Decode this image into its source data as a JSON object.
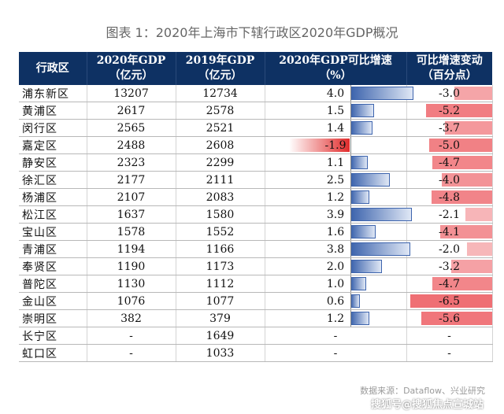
{
  "title": "图表 1：2020年上海市下辖行政区2020年GDP概况",
  "headers": {
    "name": "行政区",
    "gdp2020": "2020年GDP\n（亿元）",
    "gdp2019": "2019年GDP\n（亿元）",
    "growth": "2020年GDP可比增速\n（%）",
    "change": "可比增速变动\n（百分点）"
  },
  "source": "数据来源：Dataflow、兴业研究",
  "watermark": "搜狐号@搜狐焦点宣城站",
  "colors": {
    "header_bg": "#0e3163",
    "positive_bar": "#3d64ad",
    "negative_bar": "#e12b2b",
    "change_bar": "#ef6f74"
  },
  "chart_data": {
    "type": "table",
    "columns": [
      "行政区",
      "2020年GDP（亿元）",
      "2019年GDP（亿元）",
      "2020年GDP可比增速（%）",
      "可比增速变动（百分点）"
    ],
    "rows": [
      {
        "name": "浦东新区",
        "gdp2020": "13207",
        "gdp2019": "12734",
        "growth": "4.0",
        "change": "-3.0"
      },
      {
        "name": "黄浦区",
        "gdp2020": "2617",
        "gdp2019": "2578",
        "growth": "1.5",
        "change": "-5.2"
      },
      {
        "name": "闵行区",
        "gdp2020": "2565",
        "gdp2019": "2521",
        "growth": "1.4",
        "change": "-3.7"
      },
      {
        "name": "嘉定区",
        "gdp2020": "2488",
        "gdp2019": "2608",
        "growth": "-1.9",
        "change": "-5.0"
      },
      {
        "name": "静安区",
        "gdp2020": "2323",
        "gdp2019": "2299",
        "growth": "1.1",
        "change": "-4.7"
      },
      {
        "name": "徐汇区",
        "gdp2020": "2177",
        "gdp2019": "2111",
        "growth": "2.5",
        "change": "-4.0"
      },
      {
        "name": "杨浦区",
        "gdp2020": "2107",
        "gdp2019": "2083",
        "growth": "1.2",
        "change": "-4.8"
      },
      {
        "name": "松江区",
        "gdp2020": "1637",
        "gdp2019": "1580",
        "growth": "3.9",
        "change": "-2.1"
      },
      {
        "name": "宝山区",
        "gdp2020": "1578",
        "gdp2019": "1552",
        "growth": "1.6",
        "change": "-4.1"
      },
      {
        "name": "青浦区",
        "gdp2020": "1194",
        "gdp2019": "1166",
        "growth": "3.8",
        "change": "-2.0"
      },
      {
        "name": "奉贤区",
        "gdp2020": "1190",
        "gdp2019": "1173",
        "growth": "2.0",
        "change": "-3.2"
      },
      {
        "name": "普陀区",
        "gdp2020": "1130",
        "gdp2019": "1112",
        "growth": "1.0",
        "change": "-4.7"
      },
      {
        "name": "金山区",
        "gdp2020": "1076",
        "gdp2019": "1077",
        "growth": "0.6",
        "change": "-6.5"
      },
      {
        "name": "崇明区",
        "gdp2020": "382",
        "gdp2019": "379",
        "growth": "1.2",
        "change": "-5.6"
      },
      {
        "name": "长宁区",
        "gdp2020": "-",
        "gdp2019": "1649",
        "growth": "-",
        "change": "-"
      },
      {
        "name": "虹口区",
        "gdp2020": "-",
        "gdp2019": "1033",
        "growth": "-",
        "change": "-"
      }
    ]
  }
}
